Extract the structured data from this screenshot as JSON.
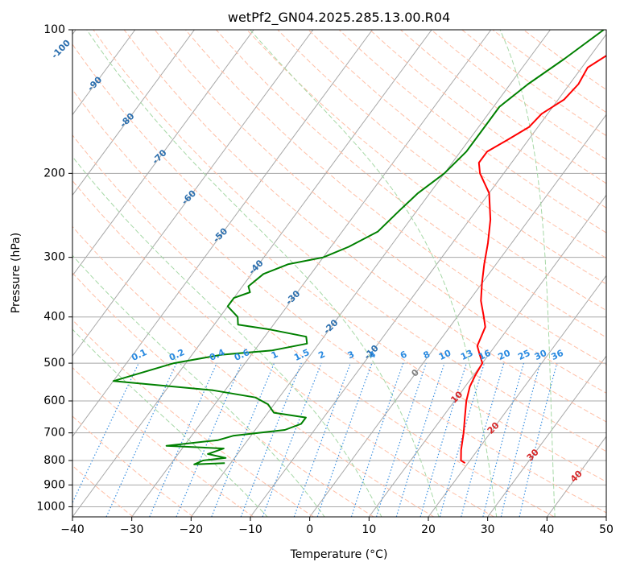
{
  "chart_data": {
    "type": "line",
    "subtype": "skew-t log-p diagram",
    "title": "wetPf2_GN04.2025.285.13.00.R04",
    "xlabel": "Temperature (°C)",
    "ylabel": "Pressure (hPa)",
    "xlim": [
      -40,
      50
    ],
    "ylim": [
      1050,
      100
    ],
    "y_scale": "log",
    "grid": true,
    "x_ticks": [
      -40,
      -30,
      -20,
      -10,
      0,
      10,
      20,
      30,
      40,
      50
    ],
    "y_ticks": [
      100,
      200,
      300,
      400,
      500,
      600,
      700,
      800,
      900,
      1000
    ],
    "series": [
      {
        "kind": "temperature",
        "color": "#ff0000",
        "points": [
          {
            "p": 810,
            "t": 19.5
          },
          {
            "p": 800,
            "t": 18.5
          },
          {
            "p": 760,
            "t": 17.2
          },
          {
            "p": 700,
            "t": 15.5
          },
          {
            "p": 650,
            "t": 13.8
          },
          {
            "p": 600,
            "t": 12.0
          },
          {
            "p": 560,
            "t": 10.8
          },
          {
            "p": 530,
            "t": 10.3
          },
          {
            "p": 500,
            "t": 10.0
          },
          {
            "p": 480,
            "t": 8.5
          },
          {
            "p": 460,
            "t": 7.0
          },
          {
            "p": 420,
            "t": 6.0
          },
          {
            "p": 400,
            "t": 4.5
          },
          {
            "p": 370,
            "t": 2.0
          },
          {
            "p": 340,
            "t": 0.0
          },
          {
            "p": 310,
            "t": -2.0
          },
          {
            "p": 280,
            "t": -4.0
          },
          {
            "p": 250,
            "t": -6.5
          },
          {
            "p": 220,
            "t": -10.0
          },
          {
            "p": 200,
            "t": -14.0
          },
          {
            "p": 190,
            "t": -15.5
          },
          {
            "p": 180,
            "t": -15.5
          },
          {
            "p": 170,
            "t": -13.5
          },
          {
            "p": 160,
            "t": -11.5
          },
          {
            "p": 150,
            "t": -11.0
          },
          {
            "p": 140,
            "t": -9.0
          },
          {
            "p": 130,
            "t": -8.5
          },
          {
            "p": 120,
            "t": -9.0
          },
          {
            "p": 112,
            "t": -7.0
          },
          {
            "p": 100,
            "t": -3.5
          }
        ]
      },
      {
        "kind": "dewpoint",
        "color": "#008000",
        "points": [
          {
            "p": 810,
            "t": -21.0
          },
          {
            "p": 815,
            "t": -26.0
          },
          {
            "p": 800,
            "t": -25.0
          },
          {
            "p": 790,
            "t": -21.5
          },
          {
            "p": 775,
            "t": -25.0
          },
          {
            "p": 755,
            "t": -23.0
          },
          {
            "p": 745,
            "t": -33.0
          },
          {
            "p": 725,
            "t": -25.0
          },
          {
            "p": 710,
            "t": -23.0
          },
          {
            "p": 690,
            "t": -15.0
          },
          {
            "p": 670,
            "t": -13.0
          },
          {
            "p": 650,
            "t": -13.0
          },
          {
            "p": 635,
            "t": -19.0
          },
          {
            "p": 610,
            "t": -21.0
          },
          {
            "p": 590,
            "t": -24.0
          },
          {
            "p": 570,
            "t": -32.0
          },
          {
            "p": 545,
            "t": -50.0
          },
          {
            "p": 500,
            "t": -42.0
          },
          {
            "p": 480,
            "t": -35.0
          },
          {
            "p": 470,
            "t": -27.0
          },
          {
            "p": 455,
            "t": -22.0
          },
          {
            "p": 440,
            "t": -23.0
          },
          {
            "p": 425,
            "t": -30.0
          },
          {
            "p": 415,
            "t": -36.0
          },
          {
            "p": 400,
            "t": -37.0
          },
          {
            "p": 380,
            "t": -40.0
          },
          {
            "p": 365,
            "t": -40.0
          },
          {
            "p": 355,
            "t": -38.0
          },
          {
            "p": 345,
            "t": -39.0
          },
          {
            "p": 325,
            "t": -38.0
          },
          {
            "p": 310,
            "t": -35.0
          },
          {
            "p": 300,
            "t": -30.0
          },
          {
            "p": 285,
            "t": -27.0
          },
          {
            "p": 265,
            "t": -24.0
          },
          {
            "p": 240,
            "t": -23.0
          },
          {
            "p": 220,
            "t": -22.0
          },
          {
            "p": 200,
            "t": -20.0
          },
          {
            "p": 180,
            "t": -19.0
          },
          {
            "p": 160,
            "t": -19.0
          },
          {
            "p": 145,
            "t": -19.0
          },
          {
            "p": 130,
            "t": -17.0
          },
          {
            "p": 115,
            "t": -14.0
          },
          {
            "p": 100,
            "t": -11.0
          }
        ]
      }
    ],
    "reference_lines": {
      "isotherm_color": "#a8a8a8",
      "dry_adiabat_color": "#ffbfa6",
      "moist_adiabat_color": "#a6d8a6",
      "mixing_ratio_color": "#3a8fe0",
      "isotherms_T": [
        -120,
        -110,
        -100,
        -90,
        -80,
        -70,
        -60,
        -50,
        -40,
        -30,
        -20,
        -10,
        0,
        10,
        20,
        30,
        40,
        50
      ],
      "dry_adiabats_theta": [
        230,
        240,
        250,
        260,
        270,
        280,
        290,
        300,
        310,
        320,
        330,
        340,
        350,
        360,
        370,
        380,
        390,
        400,
        410,
        420,
        430,
        440,
        450,
        460,
        470,
        480
      ],
      "moist_adiabats_T1000": [
        -10,
        0,
        10,
        20,
        30,
        40
      ],
      "mixing_ratio_lines": [
        0.1,
        0.2,
        0.4,
        0.6,
        1,
        1.5,
        2,
        3,
        4,
        6,
        8,
        10,
        13,
        16,
        20,
        25,
        30,
        36
      ]
    },
    "annotations": {
      "isotherm_labels": [
        {
          "text": "-100",
          "t": -100,
          "color": "#2c6fae"
        },
        {
          "text": "-90",
          "t": -90,
          "color": "#2c6fae"
        },
        {
          "text": "-80",
          "t": -80,
          "color": "#2c6fae"
        },
        {
          "text": "-70",
          "t": -70,
          "color": "#2c6fae"
        },
        {
          "text": "-60",
          "t": -60,
          "color": "#2c6fae"
        },
        {
          "text": "-50",
          "t": -50,
          "color": "#2c6fae"
        },
        {
          "text": "-40",
          "t": -40,
          "color": "#2c6fae"
        },
        {
          "text": "-30",
          "t": -30,
          "color": "#2c6fae"
        },
        {
          "text": "-20",
          "t": -20,
          "color": "#2c6fae"
        },
        {
          "text": "-10",
          "t": -10,
          "color": "#2c6fae"
        },
        {
          "text": "0",
          "t": 0,
          "color": "#808080"
        },
        {
          "text": "10",
          "t": 10,
          "color": "#d62728"
        },
        {
          "text": "20",
          "t": 20,
          "color": "#d62728"
        },
        {
          "text": "30",
          "t": 30,
          "color": "#d62728"
        },
        {
          "text": "40",
          "t": 40,
          "color": "#d62728"
        }
      ],
      "mixing_ratio_labels": [
        "0.1",
        "0.2",
        "0.4",
        "0.6",
        "1",
        "1.5",
        "2",
        "3",
        "4",
        "6",
        "8",
        "10",
        "13",
        "16",
        "20",
        "25",
        "30",
        "36"
      ],
      "mixing_ratio_label_color": "#2a8ae0"
    }
  }
}
